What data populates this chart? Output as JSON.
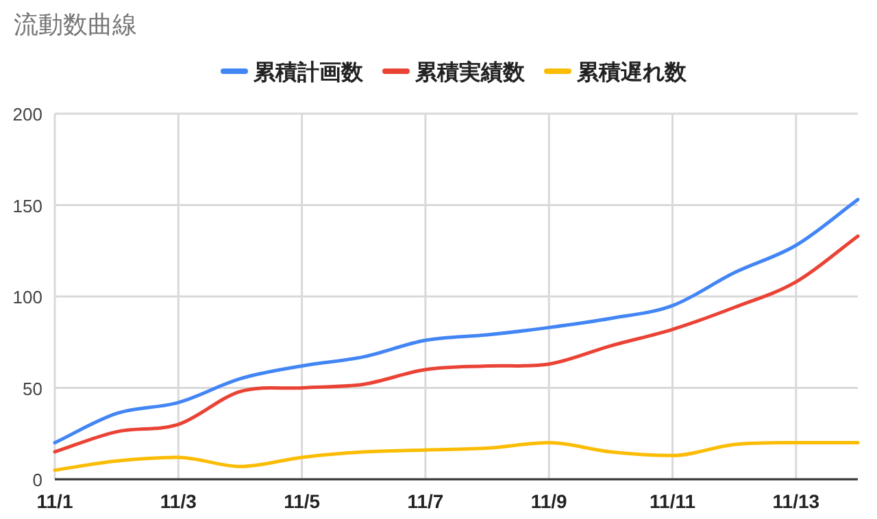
{
  "chart_data": {
    "type": "line",
    "title": "流動数曲線",
    "categories": [
      "11/1",
      null,
      "11/3",
      null,
      "11/5",
      null,
      "11/7",
      null,
      "11/9",
      null,
      "11/11",
      null,
      "11/13",
      null
    ],
    "series": [
      {
        "name": "累積計画数",
        "color": "#4285f4",
        "values": [
          20,
          36,
          42,
          55,
          62,
          67,
          76,
          79,
          83,
          88,
          95,
          113,
          128,
          153
        ]
      },
      {
        "name": "累積実績数",
        "color": "#ea4335",
        "values": [
          15,
          26,
          30,
          48,
          50,
          52,
          60,
          62,
          63,
          73,
          82,
          94,
          108,
          133
        ]
      },
      {
        "name": "累積遅れ数",
        "color": "#fbbc04",
        "values": [
          5,
          10,
          12,
          7,
          12,
          15,
          16,
          17,
          20,
          15,
          13,
          19,
          20,
          20
        ]
      }
    ],
    "ylim": [
      0,
      200
    ],
    "yticks": [
      0,
      50,
      100,
      150,
      200
    ],
    "grid": true,
    "legend": "top"
  }
}
